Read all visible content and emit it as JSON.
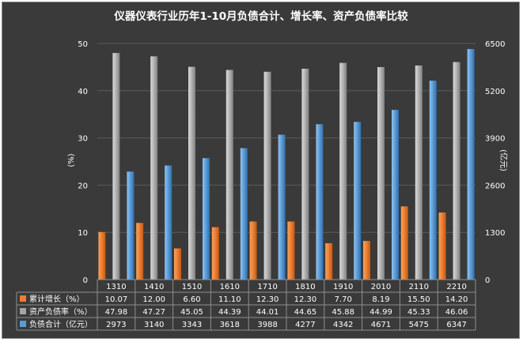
{
  "chart_data": {
    "type": "bar",
    "title": "仪器仪表行业历年1-10月负债合计、增长率、资产负债率比较",
    "categories": [
      "1310",
      "1410",
      "1510",
      "1610",
      "1710",
      "1810",
      "1910",
      "2010",
      "2110",
      "2210"
    ],
    "y_left": {
      "label": "(%)",
      "ylim": [
        0,
        50
      ],
      "ticks": [
        "0",
        "10",
        "20",
        "30",
        "40",
        "50"
      ]
    },
    "y_right": {
      "label": "(亿元)",
      "ylim": [
        0,
        6500
      ],
      "ticks": [
        "0",
        "1300",
        "2600",
        "3900",
        "5200",
        "6500"
      ]
    },
    "grid": true,
    "legend_placement": "data-table",
    "series": [
      {
        "name": "累计增长（%）",
        "axis": "left",
        "color": "#ed7d31",
        "values": [
          10.07,
          12.0,
          6.6,
          11.1,
          12.3,
          12.3,
          7.7,
          8.19,
          15.5,
          14.2
        ],
        "labels": [
          "10.07",
          "12.00",
          "6.60",
          "11.10",
          "12.30",
          "12.30",
          "7.70",
          "8.19",
          "15.50",
          "14.20"
        ]
      },
      {
        "name": "资产负债率（%）",
        "axis": "left",
        "color": "#a5a5a5",
        "values": [
          47.98,
          47.27,
          45.05,
          44.39,
          44.01,
          44.65,
          45.88,
          44.99,
          45.33,
          46.06
        ],
        "labels": [
          "47.98",
          "47.27",
          "45.05",
          "44.39",
          "44.01",
          "44.65",
          "45.88",
          "44.99",
          "45.33",
          "46.06"
        ]
      },
      {
        "name": "负债合计（亿元）",
        "axis": "right",
        "color": "#5b9bd5",
        "values": [
          2973,
          3140,
          3343,
          3618,
          3988,
          4277,
          4342,
          4671,
          5475,
          6347
        ],
        "labels": [
          "2973",
          "3140",
          "3343",
          "3618",
          "3988",
          "4277",
          "4342",
          "4671",
          "5475",
          "6347"
        ]
      }
    ]
  }
}
